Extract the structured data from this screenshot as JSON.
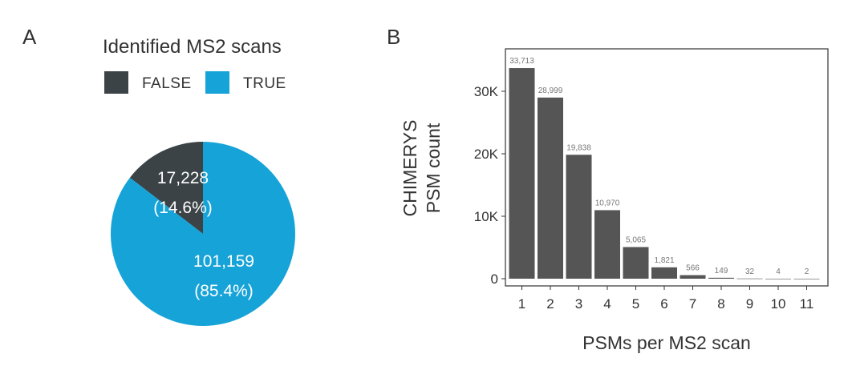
{
  "panels": {
    "a": "A",
    "b": "B"
  },
  "chart_data": [
    {
      "type": "pie",
      "title": "Identified MS2 scans",
      "legend_position": "top",
      "series": [
        {
          "name": "FALSE",
          "value": 17228,
          "label": "17,228",
          "pct_label": "(14.6%)",
          "color": "#3b4347"
        },
        {
          "name": "TRUE",
          "value": 101159,
          "label": "101,159",
          "pct_label": "(85.4%)",
          "color": "#16a3d8"
        }
      ]
    },
    {
      "type": "bar",
      "title": "",
      "xlabel": "PSMs per MS2 scan",
      "ylabel_lines": [
        "CHIMERYS",
        "PSM count"
      ],
      "ylim": [
        0,
        35500
      ],
      "yticks": [
        0,
        10000,
        20000,
        30000
      ],
      "ytick_labels": [
        "0",
        "10K",
        "20K",
        "30K"
      ],
      "bar_color": "#555555",
      "categories": [
        "1",
        "2",
        "3",
        "4",
        "5",
        "6",
        "7",
        "8",
        "9",
        "10",
        "11"
      ],
      "values": [
        33713,
        28999,
        19838,
        10970,
        5065,
        1821,
        566,
        149,
        32,
        4,
        2
      ],
      "value_labels": [
        "33,713",
        "28,999",
        "19,838",
        "10,970",
        "5,065",
        "1,821",
        "566",
        "149",
        "32",
        "4",
        "2"
      ],
      "grid": false
    }
  ]
}
